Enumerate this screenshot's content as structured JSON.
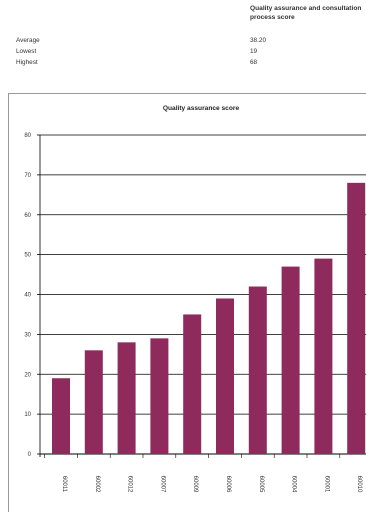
{
  "summary": {
    "header": "Quality assurance and consultation process score",
    "rows": [
      {
        "label": "Average",
        "value": "38.20"
      },
      {
        "label": "Lowest",
        "value": "19"
      },
      {
        "label": "Highest",
        "value": "68"
      }
    ]
  },
  "colors": {
    "bar": "#8e2a5c",
    "grid": "#000000"
  },
  "chart_data": {
    "type": "bar",
    "title": "Quality assurance score",
    "xlabel": "",
    "ylabel": "",
    "categories": [
      "60011",
      "60002",
      "60012",
      "60007",
      "60009",
      "60006",
      "60005",
      "60004",
      "60001",
      "60010"
    ],
    "values": [
      19,
      26,
      28,
      29,
      35,
      39,
      42,
      47,
      49,
      68
    ],
    "ylim": [
      0,
      80
    ],
    "yticks": [
      0,
      10,
      20,
      30,
      40,
      50,
      60,
      70,
      80
    ],
    "grid": true,
    "legend": "none"
  }
}
